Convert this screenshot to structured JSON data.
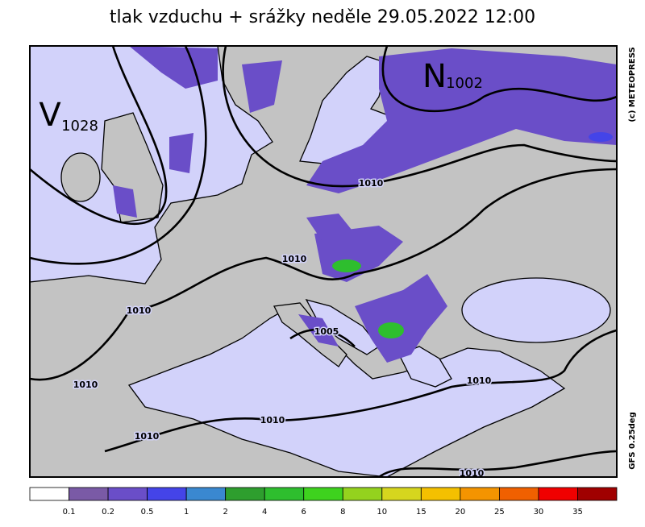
{
  "header": {
    "title": "tlak vzduchu + srážky  neděle 29.05.2022 12:00"
  },
  "centers": [
    {
      "letter": "V",
      "value": "1028"
    },
    {
      "letter": "N",
      "value": "1002"
    }
  ],
  "isobar_labels": [
    "1010",
    "1010",
    "1010",
    "1010",
    "1010",
    "1010",
    "1010",
    "1010",
    "1005"
  ],
  "credits": {
    "copyright": "(c) METEOPRESS",
    "model": "GFS 0.25deg"
  },
  "legend": {
    "colors": [
      "#ffffff",
      "#7a5aa6",
      "#6a4ec8",
      "#4444e8",
      "#3a88d0",
      "#2e9e2e",
      "#2ebe2e",
      "#3ed21e",
      "#94d21e",
      "#d6d61e",
      "#f4c000",
      "#f49400",
      "#f06000",
      "#f00000",
      "#a00000"
    ],
    "labels": [
      "0.1",
      "0.2",
      "0.5",
      "1",
      "2",
      "4",
      "6",
      "8",
      "10",
      "15",
      "20",
      "25",
      "30",
      "35"
    ]
  }
}
